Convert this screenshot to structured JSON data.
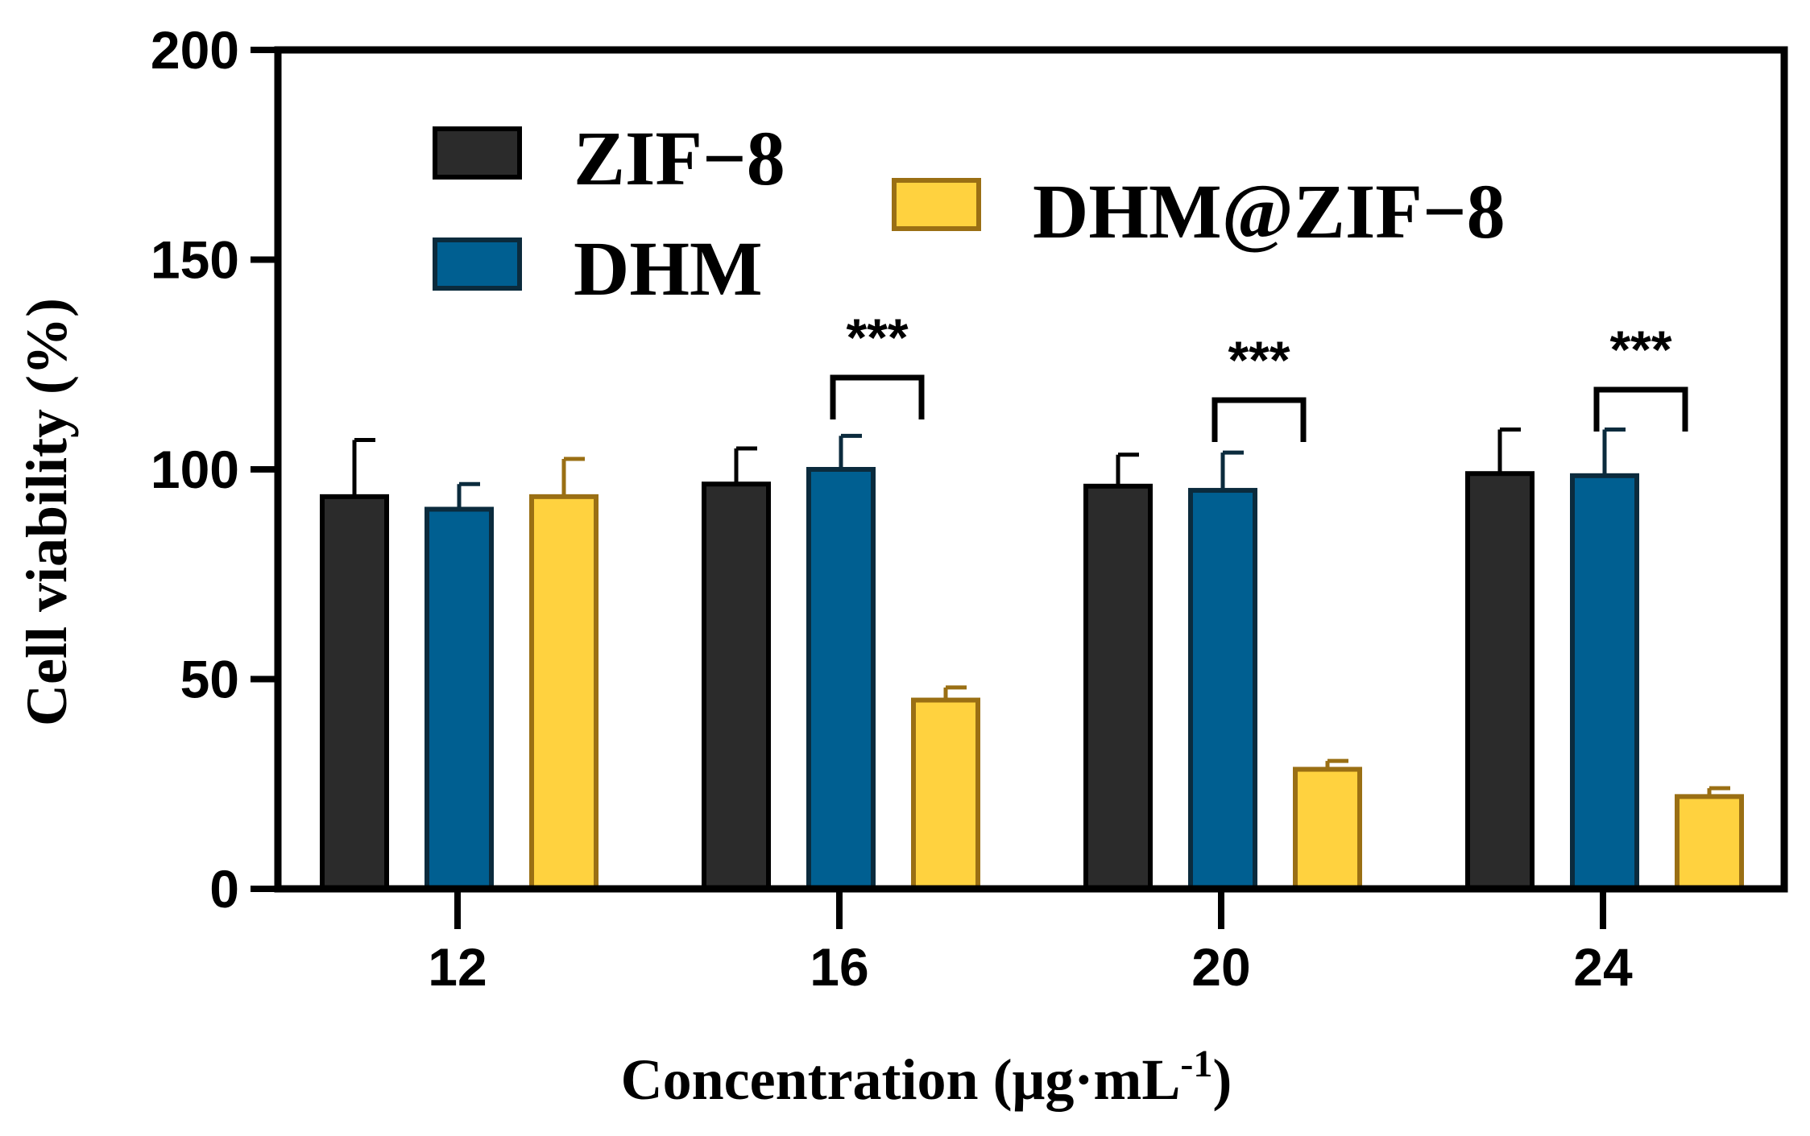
{
  "chart_data": {
    "type": "bar",
    "categories": [
      "12",
      "16",
      "20",
      "24"
    ],
    "series": [
      {
        "name": "ZIF−8",
        "values": [
          93.5,
          96.5,
          96,
          99
        ],
        "errors": [
          13.5,
          8.5,
          7.5,
          10.5
        ],
        "color": "#2b2b2b",
        "edge": "#000000"
      },
      {
        "name": "DHM",
        "values": [
          90.5,
          100,
          95,
          98.5
        ],
        "errors": [
          6,
          8,
          9,
          11
        ],
        "color": "#005f91",
        "edge": "#0b2b3d"
      },
      {
        "name": "DHM@ZIF−8",
        "values": [
          93.5,
          45,
          28.5,
          22
        ],
        "errors": [
          9,
          3,
          2,
          2
        ],
        "color": "#ffd23f",
        "edge": "#9a6f14"
      }
    ],
    "significance": [
      {
        "category": "16",
        "between": [
          "DHM",
          "DHM@ZIF−8"
        ],
        "label": "***"
      },
      {
        "category": "20",
        "between": [
          "DHM",
          "DHM@ZIF−8"
        ],
        "label": "***"
      },
      {
        "category": "24",
        "between": [
          "DHM",
          "DHM@ZIF−8"
        ],
        "label": "***"
      }
    ],
    "xlabel": "Concentration (μg·mL",
    "xlabel_superscript": "-1",
    "xlabel_suffix": ")",
    "ylabel": "Cell viability (%)",
    "ylim": [
      0,
      200
    ],
    "yticks": [
      "0",
      "50",
      "100",
      "150",
      "200"
    ],
    "legend_position": "top-left, in-plot"
  }
}
